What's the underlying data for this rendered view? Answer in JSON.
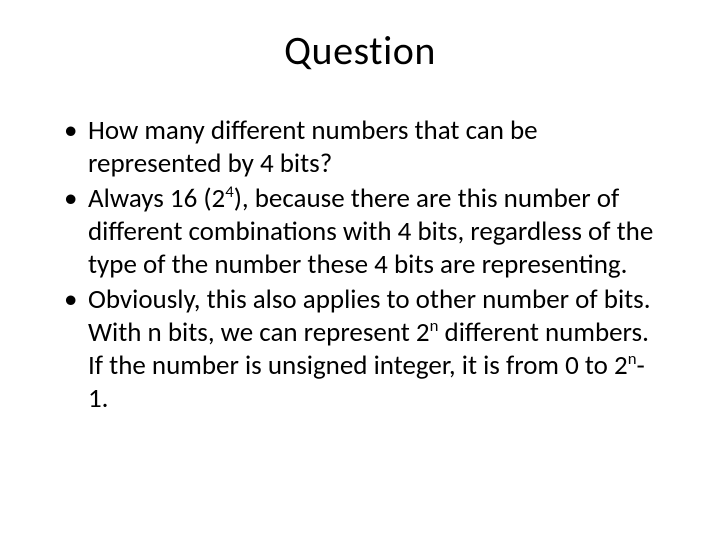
{
  "title": "Question",
  "bullets": {
    "b1": "How many different numbers that can be represented by 4 bits?",
    "b2_pre": "Always 16 (2",
    "b2_sup": "4",
    "b2_post": "), because there are this number of different combinations with 4 bits, regardless of the type of the number these 4 bits are representing.",
    "b3_pre": "Obviously, this also applies to other number of bits. With n bits, we can represent 2",
    "b3_sup1": "n",
    "b3_mid": " different numbers. If the number is unsigned integer, it is from 0 to 2",
    "b3_sup2": "n",
    "b3_post": "-1."
  },
  "colors": {
    "background": "#ffffff",
    "text": "#000000"
  },
  "fontsize": {
    "title": 40,
    "body": 27
  }
}
